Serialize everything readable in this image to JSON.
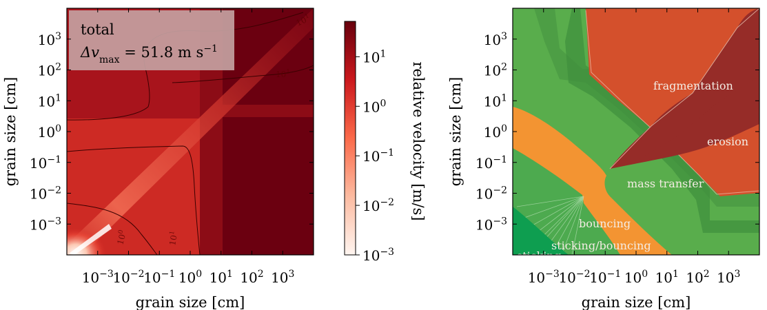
{
  "chart_data": [
    {
      "type": "heatmap",
      "xlabel": "grain size [cm]",
      "ylabel": "grain size [cm]",
      "x_scale": "log",
      "y_scale": "log",
      "xlim": [
        0.0001,
        10000
      ],
      "ylim": [
        0.0001,
        10000
      ],
      "x_ticks": [
        {
          "value": 0.001,
          "base": "10",
          "exp": "−3"
        },
        {
          "value": 0.01,
          "base": "10",
          "exp": "−2"
        },
        {
          "value": 0.1,
          "base": "10",
          "exp": "−1"
        },
        {
          "value": 1,
          "base": "10",
          "exp": "0"
        },
        {
          "value": 10,
          "base": "10",
          "exp": "1"
        },
        {
          "value": 100,
          "base": "10",
          "exp": "2"
        },
        {
          "value": 1000,
          "base": "10",
          "exp": "3"
        }
      ],
      "y_ticks": [
        {
          "value": 0.001,
          "base": "10",
          "exp": "−3"
        },
        {
          "value": 0.01,
          "base": "10",
          "exp": "−2"
        },
        {
          "value": 0.1,
          "base": "10",
          "exp": "−1"
        },
        {
          "value": 1,
          "base": "10",
          "exp": "0"
        },
        {
          "value": 10,
          "base": "10",
          "exp": "1"
        },
        {
          "value": 100,
          "base": "10",
          "exp": "2"
        },
        {
          "value": 1000,
          "base": "10",
          "exp": "3"
        }
      ],
      "annotation": {
        "line1": "total",
        "line2_prefix": "Δv",
        "line2_sub": "max",
        "line2_value": " = 51.8 m s",
        "line2_exp": "−1"
      },
      "contours": [
        {
          "value": 10,
          "label_base": "10",
          "label_exp": "1"
        },
        {
          "value": 1,
          "label_base": "10",
          "label_exp": "0"
        },
        {
          "value": 0.1,
          "label_base": "10",
          "label_exp": "−1"
        }
      ],
      "colorbar": {
        "label": "relative velocity [m/s]",
        "range": [
          0.001,
          51.8
        ],
        "scale": "log",
        "colors": [
          "#fff5f0",
          "#fcbba1",
          "#fb6a4a",
          "#cb181d",
          "#67000d"
        ],
        "ticks": [
          {
            "value": 10,
            "base": "10",
            "exp": "1"
          },
          {
            "value": 1,
            "base": "10",
            "exp": "0"
          },
          {
            "value": 0.1,
            "base": "10",
            "exp": "−1"
          },
          {
            "value": 0.01,
            "base": "10",
            "exp": "−2"
          },
          {
            "value": 0.001,
            "base": "10",
            "exp": "−3"
          }
        ]
      }
    },
    {
      "type": "heatmap",
      "xlabel": "grain size [cm]",
      "ylabel": "grain size [cm]",
      "x_scale": "log",
      "y_scale": "log",
      "xlim": [
        0.0001,
        10000
      ],
      "ylim": [
        0.0001,
        10000
      ],
      "x_ticks": [
        {
          "value": 0.001,
          "base": "10",
          "exp": "−3"
        },
        {
          "value": 0.01,
          "base": "10",
          "exp": "−2"
        },
        {
          "value": 0.1,
          "base": "10",
          "exp": "−1"
        },
        {
          "value": 1,
          "base": "10",
          "exp": "0"
        },
        {
          "value": 10,
          "base": "10",
          "exp": "1"
        },
        {
          "value": 100,
          "base": "10",
          "exp": "2"
        },
        {
          "value": 1000,
          "base": "10",
          "exp": "3"
        }
      ],
      "y_ticks": [
        {
          "value": 0.001,
          "base": "10",
          "exp": "−3"
        },
        {
          "value": 0.01,
          "base": "10",
          "exp": "−2"
        },
        {
          "value": 0.1,
          "base": "10",
          "exp": "−1"
        },
        {
          "value": 1,
          "base": "10",
          "exp": "0"
        },
        {
          "value": 10,
          "base": "10",
          "exp": "1"
        },
        {
          "value": 100,
          "base": "10",
          "exp": "2"
        },
        {
          "value": 1000,
          "base": "10",
          "exp": "3"
        }
      ],
      "regions": [
        {
          "name": "sticking",
          "color": "#0e9e50"
        },
        {
          "name": "sticking/bouncing",
          "color": "#2fae55"
        },
        {
          "name": "bouncing",
          "color": "#f39432"
        },
        {
          "name": "mass transfer",
          "color": "#59ad4c"
        },
        {
          "name": "fragmentation",
          "color": "#962c28"
        },
        {
          "name": "erosion",
          "color": "#d4502c"
        }
      ]
    }
  ]
}
